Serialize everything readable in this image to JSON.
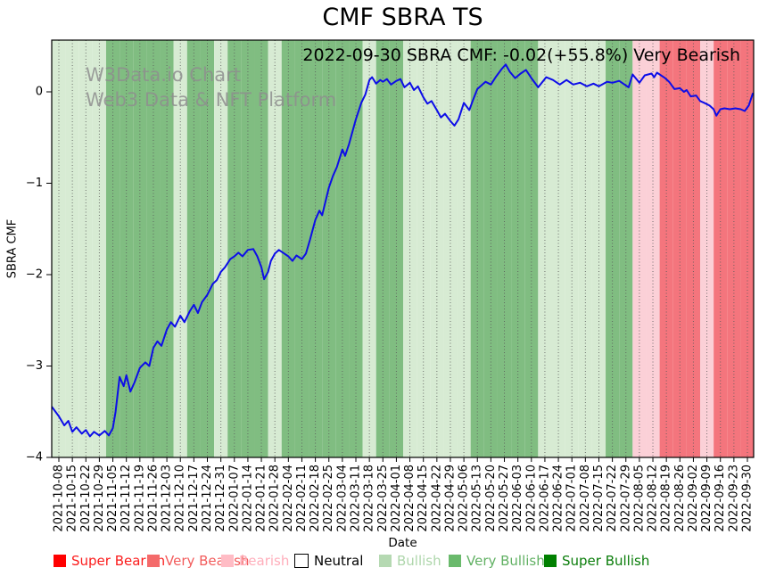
{
  "page_title": "CMF SBRA TS",
  "chart_data": {
    "type": "line",
    "title": "CMF SBRA TS",
    "xlabel": "Date",
    "ylabel": "SBRA CMF",
    "annotation": "2022-09-30 SBRA CMF: -0.02(+55.8%) Very Bearish",
    "watermark_line1": "W3Data.io Chart",
    "watermark_line2": "Web3 Data & NFT Platform",
    "ylim": [
      -4.0,
      0.57
    ],
    "yticks": [
      "0",
      "−1",
      "−2",
      "−3",
      "−4"
    ],
    "ytick_values": [
      0,
      -1,
      -2,
      -3,
      -4
    ],
    "grid": "dotted vertical gridline at every weekly tick",
    "legend_position": "bottom",
    "line_color": "#0d0de8",
    "x_tick_labels": [
      "2021-10-08",
      "2021-10-15",
      "2021-10-22",
      "2021-10-29",
      "2021-11-05",
      "2021-11-12",
      "2021-11-19",
      "2021-11-26",
      "2021-12-03",
      "2021-12-10",
      "2021-12-17",
      "2021-12-24",
      "2021-12-31",
      "2022-01-07",
      "2022-01-14",
      "2022-01-21",
      "2022-01-28",
      "2022-02-04",
      "2022-02-11",
      "2022-02-18",
      "2022-02-25",
      "2022-03-04",
      "2022-03-11",
      "2022-03-18",
      "2022-03-25",
      "2022-04-01",
      "2022-04-08",
      "2022-04-15",
      "2022-04-22",
      "2022-04-29",
      "2022-05-06",
      "2022-05-13",
      "2022-05-20",
      "2022-05-27",
      "2022-06-03",
      "2022-06-10",
      "2022-06-17",
      "2022-06-24",
      "2022-07-01",
      "2022-07-08",
      "2022-07-15",
      "2022-07-22",
      "2022-07-29",
      "2022-08-05",
      "2022-08-12",
      "2022-08-19",
      "2022-08-26",
      "2022-09-02",
      "2022-09-09",
      "2022-09-16",
      "2022-09-23",
      "2022-09-30"
    ],
    "sentiment_by_week": [
      "bullish",
      "bullish",
      "bullish",
      "bullish",
      "very_bullish",
      "very_bullish",
      "very_bullish",
      "very_bullish",
      "very_bullish",
      "bullish",
      "very_bullish",
      "very_bullish",
      "bullish",
      "very_bullish",
      "very_bullish",
      "very_bullish",
      "bullish",
      "very_bullish",
      "very_bullish",
      "very_bullish",
      "very_bullish",
      "very_bullish",
      "very_bullish",
      "bullish",
      "very_bullish",
      "very_bullish",
      "bullish",
      "bullish",
      "bullish",
      "bullish",
      "bullish",
      "very_bullish",
      "very_bullish",
      "very_bullish",
      "very_bullish",
      "very_bullish",
      "bullish",
      "bullish",
      "bullish",
      "bullish",
      "bullish",
      "very_bullish",
      "very_bullish",
      "bearish",
      "bearish",
      "very_bearish",
      "very_bearish",
      "very_bearish",
      "bearish",
      "very_bearish",
      "very_bearish",
      "very_bearish"
    ],
    "band_colors": {
      "super_bearish": "#ff0000",
      "very_bearish": "#f4757d",
      "bearish": "#fbd0d7",
      "neutral": "#ffffff",
      "bullish": "#d7ebd3",
      "very_bullish": "#80bd81",
      "super_bullish": "#008000"
    },
    "series": [
      {
        "name": "SBRA CMF",
        "x_unit": "week_index_from_2021-10-08",
        "points": [
          [
            -0.5,
            -3.45
          ],
          [
            0,
            -3.55
          ],
          [
            0.4,
            -3.65
          ],
          [
            0.7,
            -3.6
          ],
          [
            1,
            -3.72
          ],
          [
            1.3,
            -3.67
          ],
          [
            1.7,
            -3.74
          ],
          [
            2,
            -3.7
          ],
          [
            2.3,
            -3.77
          ],
          [
            2.6,
            -3.72
          ],
          [
            3,
            -3.76
          ],
          [
            3.4,
            -3.71
          ],
          [
            3.7,
            -3.76
          ],
          [
            4,
            -3.68
          ],
          [
            4.2,
            -3.5
          ],
          [
            4.5,
            -3.12
          ],
          [
            4.8,
            -3.22
          ],
          [
            5,
            -3.1
          ],
          [
            5.3,
            -3.28
          ],
          [
            5.6,
            -3.18
          ],
          [
            6,
            -3.02
          ],
          [
            6.4,
            -2.96
          ],
          [
            6.7,
            -3.0
          ],
          [
            7,
            -2.8
          ],
          [
            7.3,
            -2.73
          ],
          [
            7.6,
            -2.78
          ],
          [
            8,
            -2.6
          ],
          [
            8.3,
            -2.52
          ],
          [
            8.6,
            -2.57
          ],
          [
            9,
            -2.45
          ],
          [
            9.3,
            -2.52
          ],
          [
            9.7,
            -2.4
          ],
          [
            10,
            -2.33
          ],
          [
            10.3,
            -2.42
          ],
          [
            10.6,
            -2.3
          ],
          [
            11,
            -2.22
          ],
          [
            11.4,
            -2.1
          ],
          [
            11.7,
            -2.06
          ],
          [
            12,
            -1.97
          ],
          [
            12.3,
            -1.92
          ],
          [
            12.7,
            -1.83
          ],
          [
            13,
            -1.8
          ],
          [
            13.3,
            -1.76
          ],
          [
            13.6,
            -1.8
          ],
          [
            14,
            -1.73
          ],
          [
            14.4,
            -1.72
          ],
          [
            14.7,
            -1.8
          ],
          [
            15,
            -1.92
          ],
          [
            15.2,
            -2.05
          ],
          [
            15.5,
            -1.97
          ],
          [
            15.7,
            -1.85
          ],
          [
            16,
            -1.77
          ],
          [
            16.3,
            -1.73
          ],
          [
            16.7,
            -1.77
          ],
          [
            17,
            -1.8
          ],
          [
            17.3,
            -1.85
          ],
          [
            17.6,
            -1.79
          ],
          [
            18,
            -1.83
          ],
          [
            18.3,
            -1.77
          ],
          [
            18.6,
            -1.62
          ],
          [
            19,
            -1.4
          ],
          [
            19.3,
            -1.3
          ],
          [
            19.5,
            -1.35
          ],
          [
            20,
            -1.05
          ],
          [
            20.3,
            -0.92
          ],
          [
            20.6,
            -0.82
          ],
          [
            21,
            -0.63
          ],
          [
            21.2,
            -0.7
          ],
          [
            21.5,
            -0.57
          ],
          [
            22,
            -0.3
          ],
          [
            22.4,
            -0.12
          ],
          [
            22.7,
            -0.03
          ],
          [
            23,
            0.13
          ],
          [
            23.2,
            0.16
          ],
          [
            23.5,
            0.09
          ],
          [
            23.8,
            0.13
          ],
          [
            24,
            0.11
          ],
          [
            24.3,
            0.14
          ],
          [
            24.6,
            0.08
          ],
          [
            25,
            0.12
          ],
          [
            25.3,
            0.14
          ],
          [
            25.6,
            0.05
          ],
          [
            26,
            0.1
          ],
          [
            26.3,
            0.02
          ],
          [
            26.6,
            0.06
          ],
          [
            27,
            -0.06
          ],
          [
            27.3,
            -0.13
          ],
          [
            27.6,
            -0.1
          ],
          [
            28,
            -0.2
          ],
          [
            28.3,
            -0.28
          ],
          [
            28.6,
            -0.24
          ],
          [
            29,
            -0.32
          ],
          [
            29.3,
            -0.37
          ],
          [
            29.6,
            -0.3
          ],
          [
            30,
            -0.12
          ],
          [
            30.4,
            -0.2
          ],
          [
            30.7,
            -0.08
          ],
          [
            31,
            0.03
          ],
          [
            31.6,
            0.11
          ],
          [
            32,
            0.08
          ],
          [
            32.4,
            0.17
          ],
          [
            32.8,
            0.25
          ],
          [
            33.1,
            0.3
          ],
          [
            33.4,
            0.22
          ],
          [
            33.8,
            0.15
          ],
          [
            34.2,
            0.2
          ],
          [
            34.6,
            0.24
          ],
          [
            35,
            0.15
          ],
          [
            35.5,
            0.05
          ],
          [
            36.1,
            0.16
          ],
          [
            36.6,
            0.13
          ],
          [
            37.1,
            0.08
          ],
          [
            37.6,
            0.13
          ],
          [
            38.1,
            0.08
          ],
          [
            38.6,
            0.1
          ],
          [
            39.1,
            0.06
          ],
          [
            39.6,
            0.09
          ],
          [
            40,
            0.06
          ],
          [
            40.6,
            0.11
          ],
          [
            41,
            0.1
          ],
          [
            41.5,
            0.12
          ],
          [
            42.2,
            0.05
          ],
          [
            42.5,
            0.19
          ],
          [
            43,
            0.1
          ],
          [
            43.4,
            0.18
          ],
          [
            43.9,
            0.2
          ],
          [
            44.1,
            0.16
          ],
          [
            44.3,
            0.21
          ],
          [
            44.9,
            0.15
          ],
          [
            45.2,
            0.11
          ],
          [
            45.6,
            0.03
          ],
          [
            46,
            0.04
          ],
          [
            46.3,
            0
          ],
          [
            46.5,
            0.02
          ],
          [
            46.8,
            -0.05
          ],
          [
            47.2,
            -0.04
          ],
          [
            47.5,
            -0.1
          ],
          [
            47.8,
            -0.12
          ],
          [
            48.2,
            -0.15
          ],
          [
            48.5,
            -0.19
          ],
          [
            48.7,
            -0.26
          ],
          [
            49,
            -0.19
          ],
          [
            49.3,
            -0.18
          ],
          [
            49.7,
            -0.19
          ],
          [
            50.1,
            -0.18
          ],
          [
            50.5,
            -0.19
          ],
          [
            50.8,
            -0.21
          ],
          [
            51.1,
            -0.15
          ],
          [
            51.4,
            -0.02
          ]
        ]
      }
    ],
    "legend": {
      "items": [
        {
          "label": "Super Bearish",
          "color": "#ff0000",
          "text_color": "#fb1b1b",
          "border": false
        },
        {
          "label": "Very Bearish",
          "color": "#f46a6a",
          "text_color": "#f25c5c",
          "border": false
        },
        {
          "label": "Bearish",
          "color": "#ffbcc5",
          "text_color": "#ffaebb",
          "border": false
        },
        {
          "label": "Neutral",
          "color": "#ffffff",
          "text_color": "#000000",
          "border": true
        },
        {
          "label": "Bullish",
          "color": "#b5d9b2",
          "text_color": "#aed6ab",
          "border": false
        },
        {
          "label": "Very Bullish",
          "color": "#6aba6c",
          "text_color": "#62b164",
          "border": false
        },
        {
          "label": "Super Bullish",
          "color": "#008000",
          "text_color": "#0a7d0a",
          "border": false
        }
      ]
    }
  }
}
